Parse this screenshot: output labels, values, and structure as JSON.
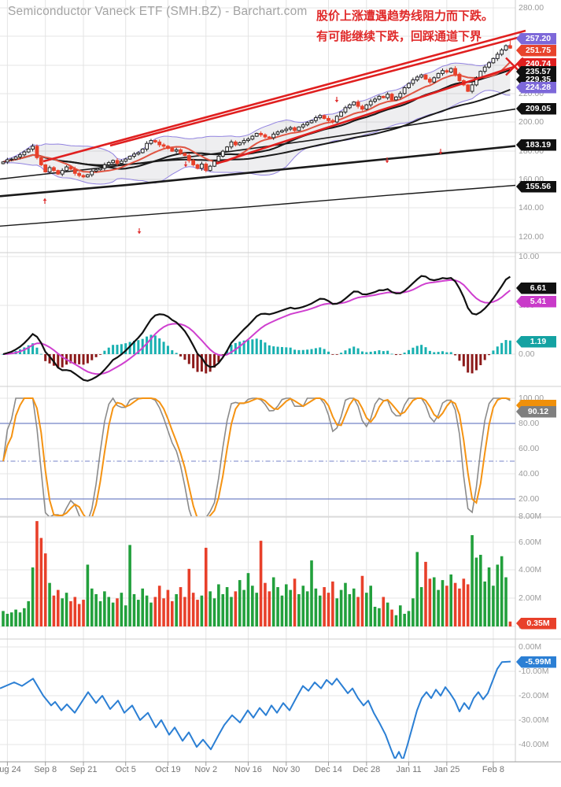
{
  "header": {
    "title": "Semiconductor Vaneck ETF (SMH.BZ) - Barchart.com",
    "annotation_line1": "股价上涨遭遇趋势线阻力而下跌。",
    "annotation_line2": "有可能继续下跌，回踩通道下界"
  },
  "colors": {
    "grid": "#e4e4e4",
    "separator": "#cfcfcf",
    "axis_text": "#9b9b9b",
    "candle_up_fill": "#ffffff",
    "candle_up_stroke": "#222222",
    "candle_down": "#e8402a",
    "bollinger_line": "#9182e0",
    "bollinger_fill": "rgba(150,150,160,0.16)",
    "ma_fast_red": "#e05543",
    "ma_black": "#1a1a1a",
    "trend_red": "#e01f1f",
    "macd_line": "#111111",
    "macd_signal": "#cf3fcf",
    "hist_pos": "#18b0b0",
    "hist_neg": "#8c1a1a",
    "stoch_k": "#8b8b8b",
    "stoch_d": "#f59312",
    "stoch_level": "#7583c8",
    "vol_up": "#22a03c",
    "vol_down": "#e8402a",
    "flow_line": "#2b7fd4"
  },
  "x_ticks": [
    {
      "index": 1,
      "label": "Aug 24"
    },
    {
      "index": 10,
      "label": "Sep 8"
    },
    {
      "index": 19,
      "label": "Sep 21"
    },
    {
      "index": 29,
      "label": "Oct 5"
    },
    {
      "index": 39,
      "label": "Oct 19"
    },
    {
      "index": 48,
      "label": "Nov 2"
    },
    {
      "index": 58,
      "label": "Nov 16"
    },
    {
      "index": 67,
      "label": "Nov 30"
    },
    {
      "index": 77,
      "label": "Dec 14"
    },
    {
      "index": 86,
      "label": "Dec 28"
    },
    {
      "index": 96,
      "label": "Jan 11"
    },
    {
      "index": 105,
      "label": "Jan 25"
    },
    {
      "index": 116,
      "label": "Feb 8"
    }
  ],
  "y_axis_labels": {
    "price": [
      [
        "280.00",
        10
      ],
      [
        "260.00",
        46
      ],
      [
        "240.00",
        83
      ],
      [
        "220.00",
        119
      ],
      [
        "200.00",
        155
      ],
      [
        "180.00",
        192
      ],
      [
        "160.00",
        228
      ],
      [
        "140.00",
        264
      ],
      [
        "120.00",
        301
      ]
    ],
    "macd": [
      [
        "10.00",
        326
      ],
      [
        "5.00",
        388
      ],
      [
        "0.00",
        450
      ]
    ],
    "stoch": [
      [
        "100.00",
        506
      ],
      [
        "80.00",
        538
      ],
      [
        "60.00",
        570
      ],
      [
        "40.00",
        602
      ],
      [
        "20.00",
        634
      ]
    ],
    "volume": [
      [
        "8.00M",
        656
      ],
      [
        "6.00M",
        689
      ],
      [
        "4.00M",
        724
      ],
      [
        "2.00M",
        760
      ],
      [
        "0.00M",
        796
      ]
    ],
    "flow": [
      [
        "0.00M",
        822
      ],
      [
        "-10.00M",
        853
      ],
      [
        "-20.00M",
        884
      ],
      [
        "-30.00M",
        915
      ],
      [
        "-40.00M",
        946
      ]
    ]
  },
  "badges": [
    {
      "name": "bollinger-upper-badge",
      "y": 49,
      "label": "257.20",
      "bg": "#7d68d9"
    },
    {
      "name": "last-price-badge",
      "y": 64,
      "label": "251.75",
      "bg": "#e8442c"
    },
    {
      "name": "ma10-badge",
      "y": 81,
      "label": "240.74",
      "bg": "#e01f1f"
    },
    {
      "name": "ma20-badge",
      "y": 91,
      "label": "235.57",
      "bg": "#101010"
    },
    {
      "name": "ma50-badge",
      "y": 101,
      "label": "229.35",
      "bg": "#101010"
    },
    {
      "name": "bollinger-lower-badge",
      "y": 111,
      "label": "224.28",
      "bg": "#7d68d9"
    },
    {
      "name": "ma100-badge",
      "y": 138,
      "label": "209.05",
      "bg": "#101010"
    },
    {
      "name": "ma150-badge",
      "y": 184,
      "label": "183.19",
      "bg": "#101010"
    },
    {
      "name": "ma200-badge",
      "y": 237,
      "label": "155.56",
      "bg": "#101010"
    },
    {
      "name": "macd-badge",
      "y": 366,
      "label": "6.61",
      "bg": "#101010"
    },
    {
      "name": "macd-signal-badge",
      "y": 383,
      "label": "5.41",
      "bg": "#c93ac9"
    },
    {
      "name": "macd-hist-badge",
      "y": 434,
      "label": "1.19",
      "bg": "#14a2a2"
    },
    {
      "name": "stoch-k-badge-partial",
      "y": 515,
      "label": "",
      "bg": "#f0900a"
    },
    {
      "name": "stoch-d-badge",
      "y": 523,
      "label": "90.12",
      "bg": "#7f7f7f"
    },
    {
      "name": "volume-badge",
      "y": 792,
      "label": "0.35M",
      "bg": "#e8402a"
    },
    {
      "name": "flow-badge",
      "y": 841,
      "label": "-5.99M",
      "bg": "#2b7fd4"
    }
  ],
  "chart_data": [
    {
      "panel": "price",
      "type": "candlestick",
      "ylim": [
        109,
        285
      ],
      "visible_ticks": [
        280,
        260,
        240,
        220,
        200,
        180,
        160,
        140,
        120
      ],
      "indicator_params": {
        "sma_fast_red": 10,
        "sma_black": 20,
        "sma_black_slow": 50,
        "bollinger": {
          "period": 20,
          "mult": 2
        }
      },
      "closes": [
        172,
        173.5,
        174,
        175.5,
        177,
        179,
        181,
        183,
        175,
        170,
        165,
        168,
        166,
        163.5,
        166,
        168.5,
        167,
        164,
        162.5,
        161.5,
        163,
        165.5,
        166.5,
        167.5,
        170,
        171.5,
        173,
        171,
        172.5,
        174,
        176,
        177.5,
        178.5,
        181,
        185,
        187,
        186,
        184,
        183,
        181.5,
        179.5,
        180.5,
        178,
        176.5,
        173,
        170,
        167.5,
        170.5,
        166,
        169,
        172.5,
        176,
        179.5,
        182.5,
        186,
        184,
        185.5,
        187,
        188,
        190,
        192,
        191,
        189.5,
        189,
        191.5,
        193,
        194,
        195,
        196,
        194,
        196.5,
        198,
        199.5,
        201,
        203,
        204.5,
        202.5,
        201,
        200,
        204,
        207,
        210,
        212,
        214,
        211,
        209,
        212,
        214.5,
        216,
        218,
        217,
        219.5,
        215.5,
        217.5,
        220,
        224,
        227,
        229.5,
        231.5,
        233,
        230,
        228,
        231,
        234,
        236,
        235,
        237.5,
        233.5,
        229,
        226,
        221.5,
        226,
        231,
        235.5,
        238.5,
        241.5,
        244.5,
        247.5,
        250.5,
        253.5,
        251.75
      ],
      "last_high": 257.2,
      "long_mas": [
        {
          "name": "ma100",
          "width": 1.6,
          "points": [
            [
              0,
              160
            ],
            [
              0.2,
              168
            ],
            [
              0.4,
              177
            ],
            [
              0.6,
              187
            ],
            [
              0.8,
              198
            ],
            [
              1,
              209.05
            ]
          ]
        },
        {
          "name": "ma150",
          "width": 2.6,
          "points": [
            [
              0,
              148
            ],
            [
              0.25,
              156
            ],
            [
              0.5,
              165
            ],
            [
              0.75,
              174
            ],
            [
              1,
              183.19
            ]
          ]
        },
        {
          "name": "ma200",
          "width": 1.4,
          "points": [
            [
              0,
              127
            ],
            [
              0.25,
              134
            ],
            [
              0.5,
              141
            ],
            [
              0.75,
              148.5
            ],
            [
              1,
              155.56
            ]
          ]
        }
      ],
      "trend_lines": [
        {
          "name": "upper-channel-a",
          "x1": 55,
          "y1": 205,
          "x2": 668,
          "y2": 39
        },
        {
          "name": "upper-channel-b",
          "x1": 140,
          "y1": 185,
          "x2": 665,
          "y2": 46
        },
        {
          "name": "lower-channel",
          "x1": 275,
          "y1": 208,
          "x2": 656,
          "y2": 84
        }
      ],
      "x_mark": {
        "cx": 654,
        "cy": 84.5,
        "half": 11
      },
      "markers": [
        {
          "x": 57,
          "y": 252,
          "dir": "up"
        },
        {
          "x": 177,
          "y": 297,
          "dir": "down"
        },
        {
          "x": 236,
          "y": 212,
          "dir": "down"
        },
        {
          "x": 428,
          "y": 130,
          "dir": "down"
        },
        {
          "x": 492,
          "y": 207,
          "dir": "down"
        },
        {
          "x": 560,
          "y": 196,
          "dir": "down"
        }
      ]
    },
    {
      "panel": "macd",
      "type": "line+histogram",
      "params": {
        "fast": 12,
        "slow": 26,
        "signal": 9
      },
      "ticks": [
        10,
        5,
        0
      ],
      "end_values": {
        "macd": 6.61,
        "signal": 5.41,
        "histogram": 1.19
      }
    },
    {
      "panel": "stochastic",
      "type": "line",
      "params": {
        "k": 14,
        "smooth": 3,
        "d": 3
      },
      "ticks": [
        100,
        80,
        60,
        40,
        20
      ],
      "levels": {
        "overbought": 80,
        "mid": 50,
        "oversold": 20
      },
      "end_values": {
        "d": 90.12
      }
    },
    {
      "panel": "volume",
      "type": "bar",
      "ticks_m": [
        8,
        6,
        4,
        2,
        0
      ],
      "end_value_m": 0.35,
      "values_m": [
        1.1,
        0.9,
        1.0,
        1.2,
        1.0,
        1.3,
        1.8,
        4.2,
        7.5,
        6.3,
        5.2,
        3.1,
        2.2,
        2.6,
        2.0,
        2.4,
        1.8,
        2.1,
        1.6,
        1.9,
        4.4,
        2.7,
        2.3,
        1.8,
        2.5,
        2.1,
        1.7,
        2.0,
        2.4,
        1.5,
        5.8,
        2.3,
        1.9,
        2.7,
        2.2,
        1.7,
        2.1,
        2.9,
        2.0,
        2.6,
        1.8,
        2.3,
        2.8,
        2.1,
        4.1,
        2.4,
        1.9,
        2.2,
        5.6,
        2.5,
        2.0,
        3.0,
        2.3,
        2.8,
        2.1,
        2.5,
        3.3,
        2.6,
        3.8,
        2.9,
        2.4,
        6.1,
        3.1,
        2.5,
        3.5,
        2.8,
        2.2,
        3.0,
        2.6,
        3.4,
        2.3,
        2.9,
        2.5,
        4.7,
        2.7,
        2.2,
        2.8,
        2.4,
        3.2,
        2.0,
        2.6,
        3.1,
        2.3,
        2.7,
        2.1,
        3.6,
        2.4,
        2.9,
        1.4,
        1.3,
        2.1,
        1.7,
        1.2,
        0.8,
        1.5,
        0.9,
        1.1,
        2.0,
        5.3,
        2.8,
        4.6,
        3.4,
        3.5,
        2.6,
        3.3,
        2.9,
        3.7,
        3.1,
        2.7,
        3.4,
        3.0,
        6.5,
        4.9,
        5.1,
        3.2,
        4.2,
        2.9,
        4.4,
        5.0,
        3.5,
        0.35
      ]
    },
    {
      "panel": "flow",
      "type": "line",
      "ticks_m": [
        0,
        -10,
        -20,
        -30,
        -40
      ],
      "end_value_m": -5.99,
      "points_xv": [
        [
          0,
          -17
        ],
        [
          18,
          -14.5
        ],
        [
          28,
          -16
        ],
        [
          42,
          -13
        ],
        [
          55,
          -20
        ],
        [
          65,
          -24
        ],
        [
          70,
          -22.5
        ],
        [
          78,
          -26
        ],
        [
          85,
          -23.5
        ],
        [
          95,
          -27
        ],
        [
          105,
          -22
        ],
        [
          112,
          -18.5
        ],
        [
          122,
          -23
        ],
        [
          130,
          -20
        ],
        [
          140,
          -25.5
        ],
        [
          150,
          -22
        ],
        [
          158,
          -27
        ],
        [
          168,
          -24
        ],
        [
          178,
          -30
        ],
        [
          188,
          -27
        ],
        [
          198,
          -33
        ],
        [
          205,
          -30
        ],
        [
          215,
          -36
        ],
        [
          222,
          -33
        ],
        [
          232,
          -38.5
        ],
        [
          240,
          -35
        ],
        [
          250,
          -41
        ],
        [
          258,
          -38
        ],
        [
          268,
          -42
        ],
        [
          278,
          -36
        ],
        [
          285,
          -32
        ],
        [
          295,
          -28
        ],
        [
          305,
          -31
        ],
        [
          315,
          -26
        ],
        [
          322,
          -29
        ],
        [
          330,
          -25
        ],
        [
          338,
          -28
        ],
        [
          345,
          -24
        ],
        [
          352,
          -27
        ],
        [
          360,
          -23
        ],
        [
          368,
          -26
        ],
        [
          378,
          -20
        ],
        [
          385,
          -16
        ],
        [
          392,
          -18
        ],
        [
          400,
          -14.5
        ],
        [
          408,
          -17
        ],
        [
          415,
          -13.5
        ],
        [
          422,
          -15.5
        ],
        [
          428,
          -13
        ],
        [
          435,
          -16
        ],
        [
          442,
          -19
        ],
        [
          448,
          -17
        ],
        [
          455,
          -21
        ],
        [
          462,
          -24
        ],
        [
          468,
          -22
        ],
        [
          475,
          -27
        ],
        [
          482,
          -31
        ],
        [
          490,
          -36
        ],
        [
          497,
          -42
        ],
        [
          502,
          -46
        ],
        [
          507,
          -43
        ],
        [
          512,
          -46.5
        ],
        [
          518,
          -40
        ],
        [
          524,
          -33
        ],
        [
          530,
          -26
        ],
        [
          536,
          -21
        ],
        [
          542,
          -18.5
        ],
        [
          548,
          -21
        ],
        [
          554,
          -17.5
        ],
        [
          560,
          -20
        ],
        [
          566,
          -16.5
        ],
        [
          572,
          -19
        ],
        [
          578,
          -22
        ],
        [
          584,
          -26.5
        ],
        [
          590,
          -23
        ],
        [
          596,
          -25.5
        ],
        [
          602,
          -21
        ],
        [
          608,
          -18.5
        ],
        [
          614,
          -21.5
        ],
        [
          620,
          -19
        ],
        [
          626,
          -14
        ],
        [
          632,
          -9
        ],
        [
          638,
          -6.2
        ],
        [
          649,
          -5.99
        ]
      ]
    }
  ]
}
